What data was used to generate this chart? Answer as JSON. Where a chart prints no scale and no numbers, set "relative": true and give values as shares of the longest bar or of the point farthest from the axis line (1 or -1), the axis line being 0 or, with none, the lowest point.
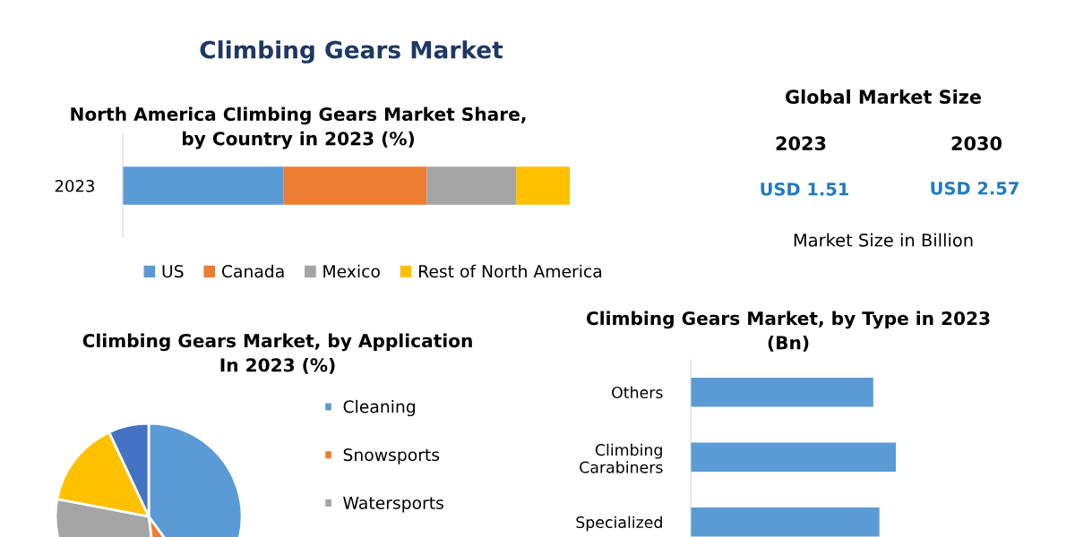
{
  "chart_data": [
    {
      "type": "bar",
      "title": "Climbing Gears Market",
      "subtitle": "North America Climbing Gears Market Share,\nby Country in 2023 (%)",
      "orientation": "horizontal",
      "stacked": true,
      "relative": true,
      "categories": [
        "2023"
      ],
      "legend": "bottom",
      "series": [
        {
          "name": "US",
          "color": "#5b9bd5",
          "values": [
            0.36
          ]
        },
        {
          "name": "Canada",
          "color": "#ed7d31",
          "values": [
            0.32
          ]
        },
        {
          "name": "Mexico",
          "color": "#a5a5a5",
          "values": [
            0.2
          ]
        },
        {
          "name": "Rest of North America",
          "color": "#ffc000",
          "values": [
            0.12
          ]
        }
      ]
    },
    {
      "type": "other",
      "title": "Global Market Size",
      "annotations": [
        "2023",
        "2030",
        "USD 1.51",
        "USD 2.57",
        "Market Size in Billion"
      ]
    },
    {
      "type": "pie",
      "title": "Climbing Gears Market, by Application\nIn 2023 (%)",
      "categories": [
        "Cleaning",
        "Snowsports",
        "Watersports",
        null,
        null
      ],
      "values": [
        40,
        8,
        30,
        15,
        7
      ],
      "colors": [
        "#5b9bd5",
        "#ed7d31",
        "#a5a5a5",
        "#ffc000",
        "#4472c4"
      ],
      "legend": "right"
    },
    {
      "type": "bar",
      "title": "Climbing Gears Market, by Type in 2023\n(Bn)",
      "orientation": "horizontal",
      "relative": true,
      "categories": [
        "Others",
        "Climbing\nCarabiners",
        "Specialized"
      ],
      "values": [
        0.89,
        1,
        0.92
      ],
      "color": "#5b9bd5"
    }
  ]
}
